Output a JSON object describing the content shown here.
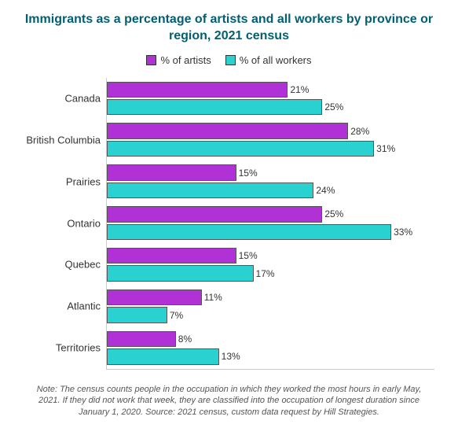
{
  "chart": {
    "type": "grouped-horizontal-bar",
    "title": "Immigrants as a percentage of artists and all workers by province or region, 2021 census",
    "title_color": "#006073",
    "title_fontsize": 16,
    "background_color": "#ffffff",
    "series": [
      {
        "name": "% of artists",
        "color": "#b031d6"
      },
      {
        "name": "% of all workers",
        "color": "#2ad1d1"
      }
    ],
    "categories": [
      "Canada",
      "British Columbia",
      "Prairies",
      "Ontario",
      "Quebec",
      "Atlantic",
      "Territories"
    ],
    "data": {
      "artists": [
        21,
        28,
        15,
        25,
        15,
        11,
        8
      ],
      "all_workers": [
        25,
        31,
        24,
        33,
        17,
        7,
        13
      ]
    },
    "value_suffix": "%",
    "xmax": 38,
    "bar_border_color": "#555555",
    "label_fontsize": 13,
    "value_fontsize": 12,
    "footnote": "Note: The census counts people in the occupation in which they worked the most hours in early May, 2021. If they did not work that week, they are classified into the occupation of longest duration since January 1, 2020. Source: 2021 census, custom data request by Hill Strategies.",
    "footnote_fontsize": 11,
    "footnote_color": "#555555"
  }
}
